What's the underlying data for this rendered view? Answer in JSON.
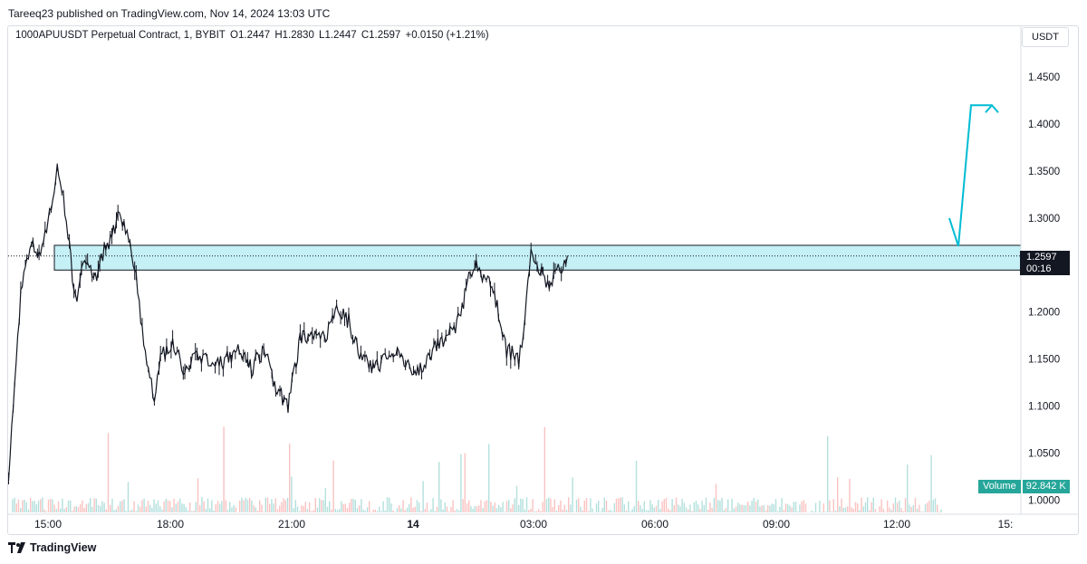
{
  "header": {
    "published_line": "Tareeq23 published on TradingView.com, Nov 14, 2024 13:03 UTC"
  },
  "legend": {
    "symbol": "1000APUUSDT Perpetual Contract, 1, BYBIT",
    "open": "O1.2447",
    "high": "H1.2830",
    "low": "L1.2447",
    "close": "C1.2597",
    "change": "+0.0150 (+1.21%)"
  },
  "currency_button": "USDT",
  "price_tag": {
    "price": "1.2597",
    "countdown": "00:16"
  },
  "volume": {
    "label": "Volume",
    "value": "92.842 K"
  },
  "footer": {
    "brand": "TradingView"
  },
  "colors": {
    "candle": "#131722",
    "zone_fill": "#b2ebf2",
    "arrow": "#00bcd4",
    "volume_up": "#26a69a",
    "volume_down": "#ef5350"
  },
  "chart_data": {
    "type": "line",
    "series": [
      {
        "name": "",
        "x": [
          "14:00",
          "14:15",
          "14:30",
          "14:45",
          "15:00",
          "15:15",
          "15:30",
          "15:45",
          "16:00",
          "16:15",
          "16:30",
          "16:45",
          "17:00",
          "17:15",
          "17:30",
          "17:45",
          "18:00",
          "18:15",
          "18:30",
          "18:45",
          "19:00",
          "19:15",
          "19:30",
          "19:45",
          "20:00",
          "20:15",
          "20:30",
          "20:45",
          "21:00",
          "21:15",
          "21:30",
          "21:45",
          "22:00",
          "22:30",
          "23:00",
          "23:30",
          "00:00",
          "00:30",
          "01:00",
          "01:30",
          "02:00",
          "02:30",
          "03:00",
          "03:30",
          "04:00",
          "04:30",
          "05:00",
          "05:30",
          "06:00",
          "06:30",
          "07:00",
          "07:30",
          "08:00",
          "08:30",
          "09:00",
          "09:15",
          "09:30",
          "10:00",
          "10:30",
          "11:00",
          "11:15",
          "11:30",
          "11:45",
          "12:00",
          "12:15",
          "12:30",
          "12:45",
          "13:00"
        ],
        "values": [
          1.03,
          1.12,
          1.22,
          1.25,
          1.27,
          1.26,
          1.28,
          1.31,
          1.35,
          1.32,
          1.27,
          1.21,
          1.24,
          1.26,
          1.23,
          1.25,
          1.27,
          1.28,
          1.3,
          1.29,
          1.27,
          1.24,
          1.18,
          1.14,
          1.11,
          1.15,
          1.16,
          1.17,
          1.15,
          1.13,
          1.15,
          1.16,
          1.15,
          1.14,
          1.15,
          1.16,
          1.14,
          1.16,
          1.12,
          1.1,
          1.17,
          1.18,
          1.17,
          1.21,
          1.19,
          1.15,
          1.14,
          1.15,
          1.16,
          1.14,
          1.14,
          1.16,
          1.17,
          1.19,
          1.24,
          1.25,
          1.24,
          1.22,
          1.16,
          1.15,
          1.19,
          1.26,
          1.25,
          1.24,
          1.23,
          1.24,
          1.25,
          1.26
        ]
      },
      {
        "name": "",
        "x": [
          "13:15",
          "13:30",
          "13:45",
          "14:00"
        ],
        "values": [
          1.3,
          1.27,
          1.42,
          1.42
        ]
      }
    ],
    "yticks": [
      "1.4500",
      "1.4000",
      "1.3500",
      "1.3000",
      "1.2500",
      "1.2000",
      "1.1500",
      "1.1000",
      "1.0500",
      "1.0000"
    ],
    "xticks": [
      "15:00",
      "18:00",
      "21:00",
      "14",
      "03:00",
      "06:00",
      "09:00",
      "12:00",
      "15:"
    ],
    "ylim": [
      0.985,
      1.505
    ],
    "zone": {
      "low": 1.2447,
      "high": 1.271
    },
    "last_price": 1.2597,
    "grid": false,
    "legend_position": "top-left"
  }
}
